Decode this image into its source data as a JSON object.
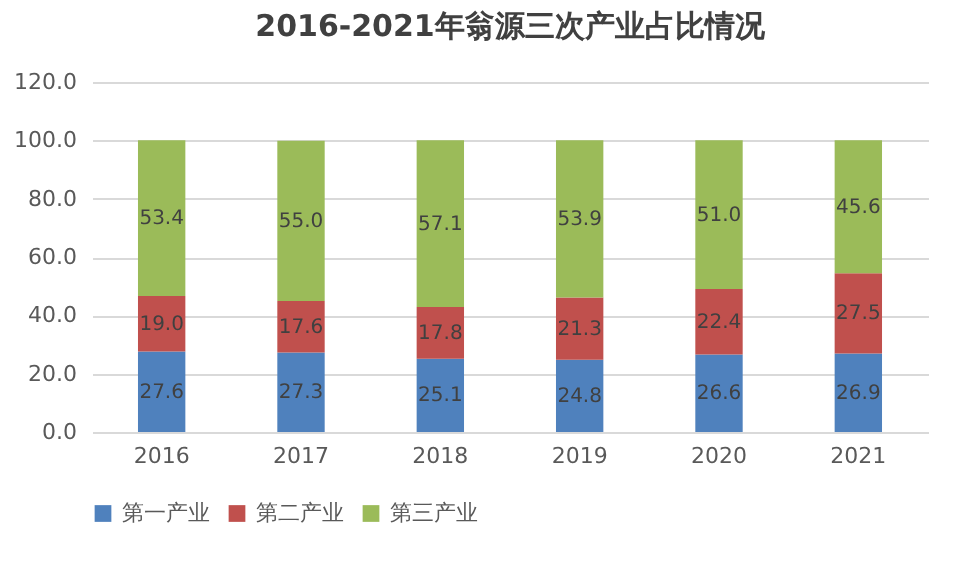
{
  "chart_data": {
    "type": "bar",
    "title": "2016-2021年翁源三次产业占比情况",
    "categories": [
      "2016",
      "2017",
      "2018",
      "2019",
      "2020",
      "2021"
    ],
    "stacked": true,
    "data_labels": true,
    "grid": "y",
    "legend": "bottom",
    "ylim": [
      0,
      120
    ],
    "yticks": [
      {
        "value": 0,
        "label": "0.0"
      },
      {
        "value": 20,
        "label": "20.0"
      },
      {
        "value": 40,
        "label": "40.0"
      },
      {
        "value": 60,
        "label": "60.0"
      },
      {
        "value": 80,
        "label": "80.0"
      },
      {
        "value": 100,
        "label": "100.0"
      },
      {
        "value": 120,
        "label": "120.0"
      }
    ],
    "series": [
      {
        "name": "第一产业",
        "color": "#4f81bd",
        "values": [
          27.6,
          27.3,
          25.1,
          24.8,
          26.6,
          26.9
        ],
        "value_labels": [
          "27.6",
          "27.3",
          "25.1",
          "24.8",
          "26.6",
          "26.9"
        ]
      },
      {
        "name": "第二产业",
        "color": "#c0504d",
        "values": [
          19.0,
          17.6,
          17.8,
          21.3,
          22.4,
          27.5
        ],
        "value_labels": [
          "19.0",
          "17.6",
          "17.8",
          "21.3",
          "22.4",
          "27.5"
        ]
      },
      {
        "name": "第三产业",
        "color": "#9bbb59",
        "values": [
          53.4,
          55.0,
          57.1,
          53.9,
          51.0,
          45.6
        ],
        "value_labels": [
          "53.4",
          "55.0",
          "57.1",
          "53.9",
          "51.0",
          "45.6"
        ]
      }
    ]
  }
}
